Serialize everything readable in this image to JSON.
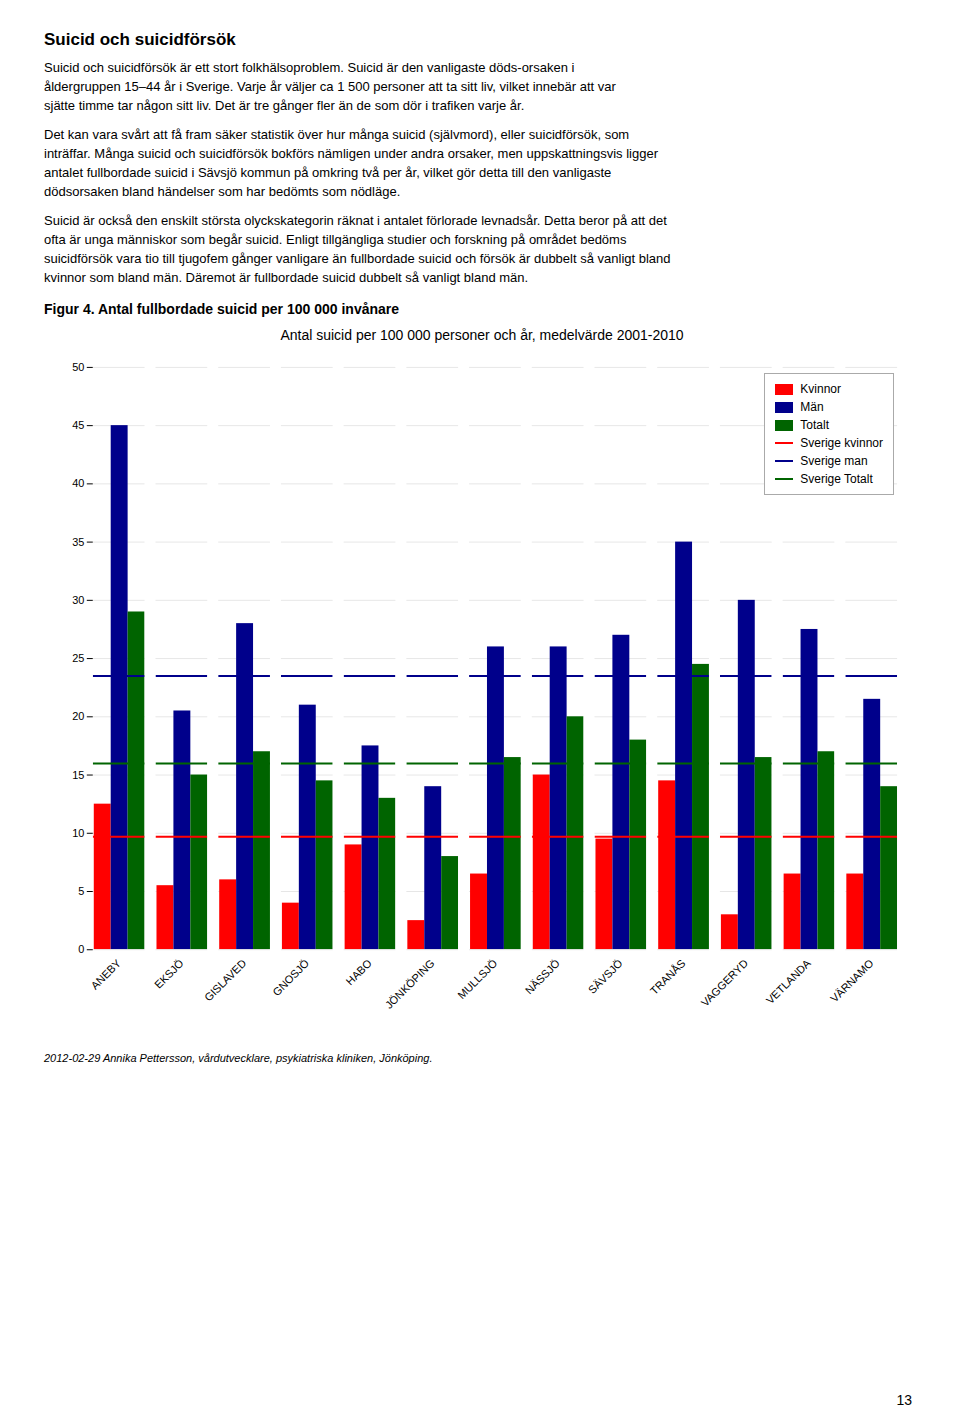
{
  "page_text": {
    "heading": "Suicid och suicidförsök",
    "paragraphs": [
      [
        "Suicid och suicidförsök är ett stort folkhälsoproblem. Suicid är den vanligaste döds-orsaken i",
        "åldergruppen 15–44 år i Sverige. Varje år väljer ca 1 500 personer att ta sitt liv, vilket innebär att var",
        "sjätte timme tar någon sitt liv. Det är tre gånger fler än de som dör i trafiken varje år."
      ],
      [
        "Det kan vara svårt att få fram säker statistik över hur många suicid (självmord), eller suicidförsök, som",
        "inträffar. Många suicid och suicidförsök bokförs nämligen under andra orsaker, men uppskattningsvis ligger",
        "antalet fullbordade suicid i Sävsjö kommun på omkring två per år, vilket gör detta till den vanligaste",
        "dödsorsaken bland händelser som har bedömts som nödläge."
      ],
      [
        "Suicid är också den enskilt största olyckskategorin räknat i antalet förlorade levnadsår. Detta beror på att det",
        "ofta är unga människor som begår suicid. Enligt tillgängliga studier och forskning på området bedöms",
        "suicidförsök vara tio till tjugofem gånger vanligare än fullbordade suicid och försök är dubbelt så vanligt bland",
        "kvinnor som bland män. Däremot är fullbordade suicid dubbelt så vanligt bland män."
      ]
    ]
  },
  "figure_label": "Figur 4. Antal fullbordade suicid per 100 000 invånare",
  "footnote": "2012-02-29 Annika Pettersson, vårdutvecklare, psykiatriska kliniken, Jönköping.",
  "page_number": 13,
  "chart_data": {
    "type": "bar",
    "title": "Antal suicid per 100 000 personer och år, medelvärde 2001-2010",
    "categories": [
      "ANEBY",
      "EKSJÖ",
      "GISLAVED",
      "GNOSJÖ",
      "HABO",
      "JÖNKÖPING",
      "MULLSJÖ",
      "NÄSSJÖ",
      "SÄVSJÖ",
      "TRANÅS",
      "VAGGERYD",
      "VETLANDA",
      "VÄRNAMO"
    ],
    "series": [
      {
        "name": "Kvinnor",
        "color": "#FF0000",
        "values": [
          12.5,
          5.5,
          6.0,
          4.0,
          9.0,
          2.5,
          6.5,
          15.0,
          9.5,
          14.5,
          3.0,
          6.5,
          6.5
        ]
      },
      {
        "name": "Män",
        "color": "#00008B",
        "values": [
          45.0,
          20.5,
          28.0,
          21.0,
          17.5,
          14.0,
          26.0,
          26.0,
          27.0,
          35.0,
          30.0,
          27.5,
          21.5
        ]
      },
      {
        "name": "Totalt",
        "color": "#006400",
        "values": [
          29.0,
          15.0,
          17.0,
          14.5,
          13.0,
          8.0,
          16.5,
          20.0,
          18.0,
          24.5,
          16.5,
          17.0,
          14.0
        ]
      },
      {
        "name": "Sverige kvinnor",
        "type": "hline",
        "color": "#FF0000",
        "value": 9.7
      },
      {
        "name": "Sverige man",
        "type": "hline",
        "color": "#00008B",
        "value": 23.5
      },
      {
        "name": "Sverige Totalt",
        "type": "hline",
        "color": "#006400",
        "value": 16.0
      }
    ],
    "ylim": [
      0,
      50
    ],
    "yticks": [
      0,
      5,
      10,
      15,
      20,
      25,
      30,
      35,
      40,
      45,
      50
    ],
    "grid": true,
    "legend": "upper right"
  }
}
